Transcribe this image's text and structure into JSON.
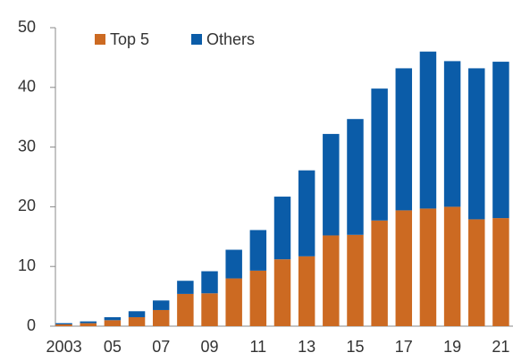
{
  "chart_data": {
    "type": "stacked_bar",
    "categories": [
      "2003",
      null,
      "05",
      null,
      "07",
      null,
      "09",
      null,
      "11",
      null,
      "13",
      null,
      "15",
      null,
      "17",
      null,
      "19",
      null,
      "21"
    ],
    "series": [
      {
        "name": "Top 5",
        "color": "#cc6a22",
        "values": [
          0.3,
          0.5,
          1.0,
          1.5,
          2.7,
          5.4,
          5.5,
          8.0,
          9.3,
          11.2,
          11.7,
          15.2,
          15.3,
          17.7,
          19.4,
          19.7,
          20.0,
          17.9,
          18.1
        ]
      },
      {
        "name": "Others",
        "color": "#0b5ca8",
        "values": [
          0.2,
          0.3,
          0.5,
          1.0,
          1.6,
          2.2,
          3.7,
          4.8,
          6.8,
          10.5,
          14.4,
          17.0,
          19.4,
          22.1,
          23.8,
          26.3,
          24.4,
          25.3,
          26.2
        ]
      }
    ],
    "ylim": [
      0,
      50
    ],
    "yticks": [
      0,
      10,
      20,
      30,
      40,
      50
    ],
    "legend": "top-left"
  }
}
